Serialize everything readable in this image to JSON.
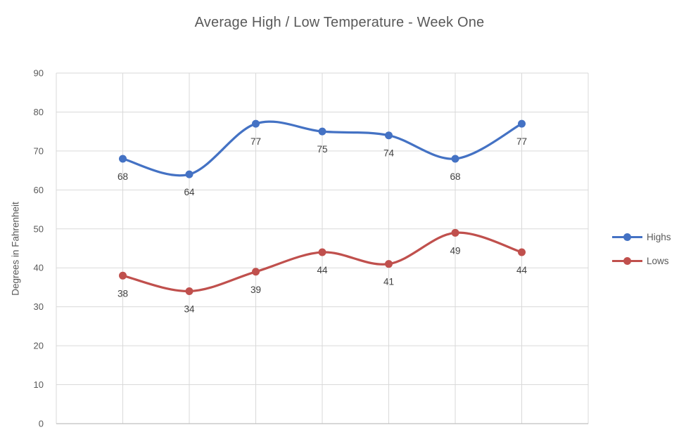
{
  "chart_data": {
    "type": "line",
    "title": "Average High / Low Temperature - Week One",
    "xlabel": "",
    "ylabel": "Degrees in Fahrenheit",
    "x": [
      1,
      2,
      3,
      4,
      5,
      6,
      7
    ],
    "x_axis_tick_labels": [],
    "x_slots": 8,
    "ylim": [
      0,
      90
    ],
    "yticks": [
      0,
      10,
      20,
      30,
      40,
      50,
      60,
      70,
      80,
      90
    ],
    "grid": true,
    "smooth_lines": true,
    "show_markers": true,
    "show_data_labels": true,
    "legend_position": "right",
    "series": [
      {
        "name": "Highs",
        "color": "#4472C4",
        "values": [
          68,
          64,
          77,
          75,
          74,
          68,
          77
        ]
      },
      {
        "name": "Lows",
        "color": "#C0504D",
        "values": [
          38,
          34,
          39,
          44,
          41,
          49,
          44
        ]
      }
    ]
  },
  "colors": {
    "background": "#FFFFFF",
    "gridline": "#D9D9D9",
    "axis_line": "#BFBFBF",
    "title_text": "#595959",
    "axis_tick_text": "#595959",
    "data_label_text": "#404040",
    "legend_text": "#595959"
  }
}
